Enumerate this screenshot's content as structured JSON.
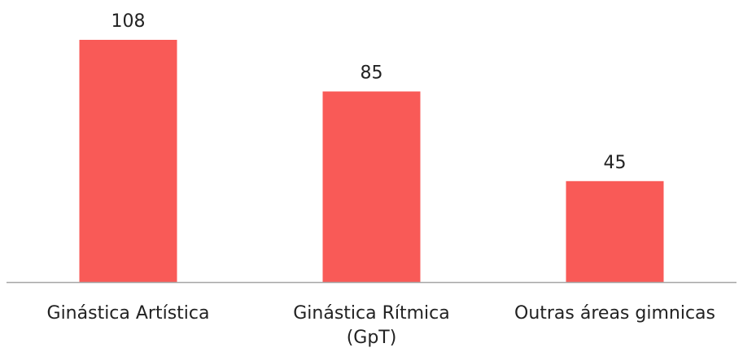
{
  "chart_data": {
    "type": "bar",
    "categories": [
      [
        "Ginástica Artística"
      ],
      [
        "Ginástica Rítmica",
        "(GpT)"
      ],
      [
        "Outras áreas gimnicas"
      ]
    ],
    "values": [
      108,
      85,
      45
    ],
    "data_labels": [
      "108",
      "85",
      "45"
    ],
    "title": "",
    "xlabel": "",
    "ylabel": "",
    "ylim": [
      0,
      120
    ],
    "grid": false,
    "legend": "none",
    "bar_color": "#F95A57",
    "axis_color": "#A6A6A6"
  }
}
